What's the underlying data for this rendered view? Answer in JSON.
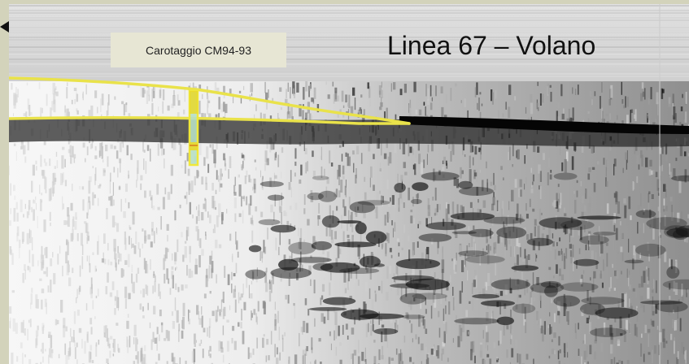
{
  "slide": {
    "caption": "Carotaggio CM94-93",
    "title": "Linea 67 – Volano"
  },
  "colors": {
    "background": "#d3d3bb",
    "caption_box": "#e7e6d4",
    "horizon_line": "#e9e24a",
    "core_marker": "#f0e83a",
    "core_interior": "#b7dfc4"
  }
}
